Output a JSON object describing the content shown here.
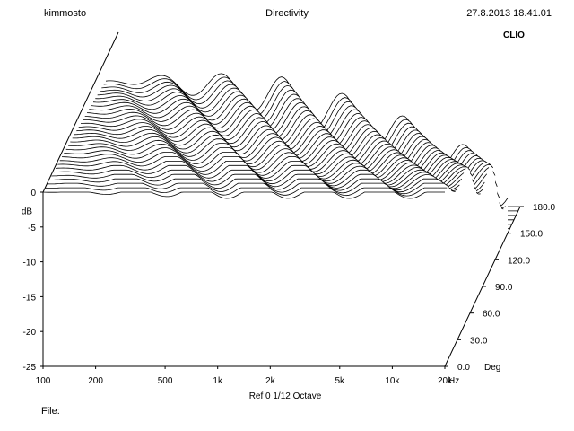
{
  "header": {
    "left": "kimmosto",
    "center": "Directivity",
    "right": "27.8.2013 18.41.01"
  },
  "brand": "CLIO",
  "footer": {
    "info": "Ref 0   1/12 Octave",
    "file_label": "File:"
  },
  "chart_data": {
    "type": "waterfall",
    "title": "Directivity",
    "xlabel": "Hz",
    "ylabel": "dB",
    "zlabel": "Deg",
    "x_scale": "log",
    "xlim": [
      100,
      20000
    ],
    "ylim": [
      -25,
      0
    ],
    "zlim": [
      0,
      180
    ],
    "x_ticks": [
      "100",
      "200",
      "500",
      "1k",
      "2k",
      "5k",
      "10k",
      "20k"
    ],
    "x_tick_values": [
      100,
      200,
      500,
      1000,
      2000,
      5000,
      10000,
      20000
    ],
    "y_ticks": [
      "0",
      "-5",
      "-10",
      "-15",
      "-20",
      "-25"
    ],
    "y_tick_values": [
      0,
      -5,
      -10,
      -15,
      -20,
      -25
    ],
    "z_ticks": [
      "0.0",
      "30.0",
      "60.0",
      "90.0",
      "120.0",
      "150.0",
      "180.0"
    ],
    "z_tick_values": [
      0,
      30,
      60,
      90,
      120,
      150,
      180
    ],
    "angle_step_deg": 5,
    "grid": false,
    "series_summary": [
      {
        "angle": 0,
        "description_db": [
          [
            100,
            0
          ],
          [
            1000,
            0
          ],
          [
            5000,
            0
          ],
          [
            20000,
            -1
          ]
        ]
      },
      {
        "angle": 30,
        "description_db": [
          [
            100,
            0
          ],
          [
            1000,
            -1
          ],
          [
            3000,
            -3
          ],
          [
            10000,
            -6
          ],
          [
            20000,
            -10
          ]
        ]
      },
      {
        "angle": 60,
        "description_db": [
          [
            100,
            -1
          ],
          [
            1000,
            -5
          ],
          [
            2000,
            -12
          ],
          [
            5000,
            -18
          ],
          [
            20000,
            -22
          ]
        ]
      },
      {
        "angle": 90,
        "description_db": [
          [
            100,
            -3
          ],
          [
            500,
            -9
          ],
          [
            1000,
            -20
          ],
          [
            3000,
            -24
          ],
          [
            20000,
            -25
          ]
        ]
      },
      {
        "angle": 180,
        "description_db": [
          [
            100,
            -20
          ],
          [
            400,
            -14
          ],
          [
            600,
            -18
          ],
          [
            1000,
            -25
          ],
          [
            20000,
            -25
          ]
        ]
      }
    ]
  }
}
